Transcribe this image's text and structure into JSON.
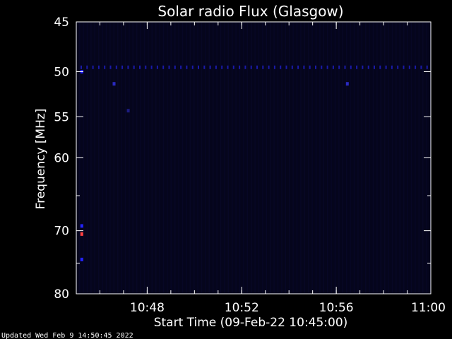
{
  "chart_data": {
    "type": "heatmap",
    "title": "Solar radio Flux (Glasgow)",
    "xlabel": "Start Time (09-Feb-22 10:45:00)",
    "ylabel": "Frequency [MHz]",
    "x_range": [
      "10:45:00",
      "11:00:00"
    ],
    "x_ticks": [
      "10:48",
      "10:52",
      "10:56",
      "11:00"
    ],
    "y_range": [
      45,
      80
    ],
    "y_ticks": [
      45,
      50,
      55,
      60,
      70,
      80
    ],
    "y_scale": "log",
    "background_color": "#000000",
    "plot_color": "#05051c",
    "axis_color": "#ffffff",
    "band_color": "#1a1aa8",
    "band_frequency_mhz": 49.5,
    "hotspots": [
      {
        "time": "10:45:14",
        "frequency": 50.0,
        "color": "#2323ff"
      },
      {
        "time": "10:46:36",
        "frequency": 51.3,
        "color": "#2a2ac0"
      },
      {
        "time": "10:47:12",
        "frequency": 54.3,
        "color": "#1c1c80"
      },
      {
        "time": "10:56:28",
        "frequency": 51.3,
        "color": "#2a2ac0"
      },
      {
        "time": "10:45:14",
        "frequency": 69.3,
        "color": "#2323ff"
      },
      {
        "time": "10:45:14",
        "frequency": 70.5,
        "color": "#ff4040"
      },
      {
        "time": "10:45:14",
        "frequency": 74.4,
        "color": "#2323ff"
      }
    ]
  },
  "footer": {
    "updated": "Updated Wed Feb  9 14:50:45 2022"
  }
}
